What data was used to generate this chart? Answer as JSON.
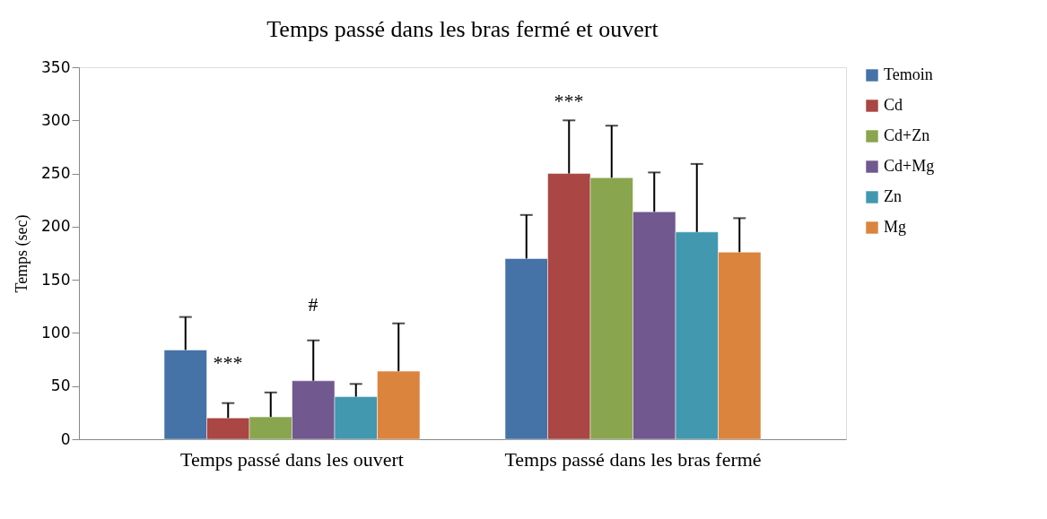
{
  "chart_data": {
    "type": "bar",
    "title": "Temps passé dans les bras fermé et ouvert",
    "ylabel": "Temps (sec)",
    "categories": [
      "Temps passé dans les  ouvert",
      "Temps passé dans les bras fermé"
    ],
    "series": [
      {
        "name": "Temoin",
        "color": "#4572a7",
        "values": [
          84,
          170
        ],
        "errors": [
          [
            84,
            115
          ],
          [
            170,
            211
          ]
        ]
      },
      {
        "name": "Cd",
        "color": "#aa4643",
        "values": [
          20,
          250
        ],
        "errors": [
          [
            20,
            34
          ],
          [
            250,
            300
          ]
        ]
      },
      {
        "name": "Cd+Zn",
        "color": "#89a54e",
        "values": [
          21,
          246
        ],
        "errors": [
          [
            21,
            44
          ],
          [
            246,
            295
          ]
        ]
      },
      {
        "name": "Cd+Mg",
        "color": "#71588f",
        "values": [
          55,
          214
        ],
        "errors": [
          [
            55,
            93
          ],
          [
            214,
            251
          ]
        ]
      },
      {
        "name": "Zn",
        "color": "#4198af",
        "values": [
          40,
          195
        ],
        "errors": [
          [
            40,
            52
          ],
          [
            195,
            259
          ]
        ]
      },
      {
        "name": "Mg",
        "color": "#db843d",
        "values": [
          64,
          176
        ],
        "errors": [
          [
            64,
            109
          ],
          [
            176,
            208
          ]
        ]
      }
    ],
    "annotations": [
      "***",
      "#",
      "***"
    ],
    "ylim": [
      0,
      350
    ],
    "yticks": [
      0,
      50,
      100,
      150,
      200,
      250,
      300,
      350
    ],
    "grid": false,
    "legend": "right"
  }
}
